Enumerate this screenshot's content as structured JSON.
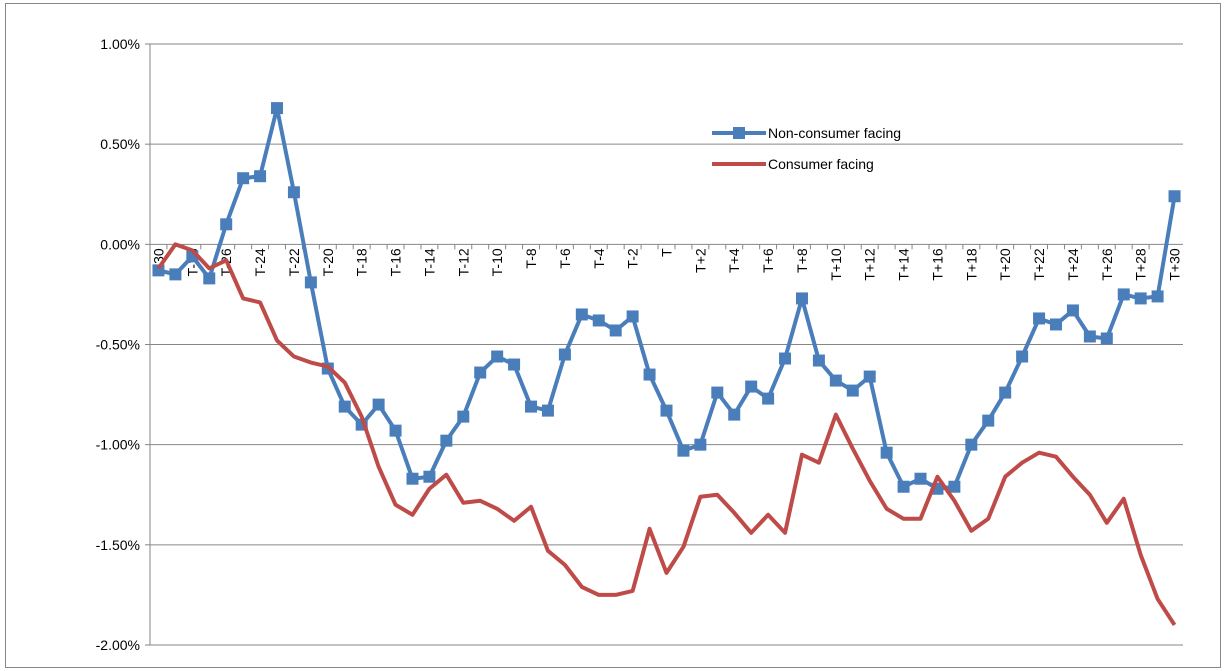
{
  "chart_data": {
    "type": "line",
    "categories": [
      "T-30",
      null,
      "T-28",
      null,
      "T-26",
      null,
      "T-24",
      null,
      "T-22",
      null,
      "T-20",
      null,
      "T-18",
      null,
      "T-16",
      null,
      "T-14",
      null,
      "T-12",
      null,
      "T-10",
      null,
      "T-8",
      null,
      "T-6",
      null,
      "T-4",
      null,
      "T-2",
      null,
      "T",
      null,
      "T+2",
      null,
      "T+4",
      null,
      "T+6",
      null,
      "T+8",
      null,
      "T+10",
      null,
      "T+12",
      null,
      "T+14",
      null,
      "T+16",
      null,
      "T+18",
      null,
      "T+20",
      null,
      "T+22",
      null,
      "T+24",
      null,
      "T+26",
      null,
      "T+28",
      null,
      "T+30"
    ],
    "series": [
      {
        "name": "Non-consumer facing",
        "color": "#4a7ebb",
        "marker": "square",
        "values": [
          -0.13,
          -0.15,
          -0.06,
          -0.17,
          0.1,
          0.33,
          0.34,
          0.68,
          0.26,
          -0.19,
          -0.62,
          -0.81,
          -0.9,
          -0.8,
          -0.93,
          -1.17,
          -1.16,
          -0.98,
          -0.86,
          -0.64,
          -0.56,
          -0.6,
          -0.81,
          -0.83,
          -0.55,
          -0.35,
          -0.38,
          -0.43,
          -0.36,
          -0.65,
          -0.83,
          -1.03,
          -1.0,
          -0.74,
          -0.85,
          -0.71,
          -0.77,
          -0.57,
          -0.27,
          -0.58,
          -0.68,
          -0.73,
          -0.66,
          -1.04,
          -1.21,
          -1.17,
          -1.22,
          -1.21,
          -1.0,
          -0.88,
          -0.74,
          -0.56,
          -0.37,
          -0.4,
          -0.33,
          -0.46,
          -0.47,
          -0.25,
          -0.27,
          -0.26,
          0.24
        ]
      },
      {
        "name": "Consumer facing",
        "color": "#be4b48",
        "marker": "none",
        "values": [
          -0.12,
          0.0,
          -0.03,
          -0.12,
          -0.08,
          -0.27,
          -0.29,
          -0.48,
          -0.56,
          -0.59,
          -0.61,
          -0.69,
          -0.86,
          -1.11,
          -1.3,
          -1.35,
          -1.22,
          -1.15,
          -1.29,
          -1.28,
          -1.32,
          -1.38,
          -1.31,
          -1.53,
          -1.6,
          -1.71,
          -1.75,
          -1.75,
          -1.73,
          -1.42,
          -1.64,
          -1.51,
          -1.26,
          -1.25,
          -1.34,
          -1.44,
          -1.35,
          -1.44,
          -1.05,
          -1.09,
          -0.85,
          -1.02,
          -1.18,
          -1.32,
          -1.37,
          -1.37,
          -1.16,
          -1.28,
          -1.43,
          -1.37,
          -1.16,
          -1.09,
          -1.04,
          -1.06,
          -1.16,
          -1.25,
          -1.39,
          -1.27,
          -1.55,
          -1.77,
          -1.9
        ]
      }
    ],
    "ylim": [
      -2,
      1
    ],
    "yticks": [
      {
        "value": -2,
        "label": "-2.00%"
      },
      {
        "value": -1.5,
        "label": "-1.50%"
      },
      {
        "value": -1,
        "label": "-1.00%"
      },
      {
        "value": -0.5,
        "label": "-0.50%"
      },
      {
        "value": 0,
        "label": "0.00%"
      },
      {
        "value": 0.5,
        "label": "0.50%"
      },
      {
        "value": 1,
        "label": "1.00%"
      }
    ],
    "grid": true,
    "legend": "top-right"
  }
}
